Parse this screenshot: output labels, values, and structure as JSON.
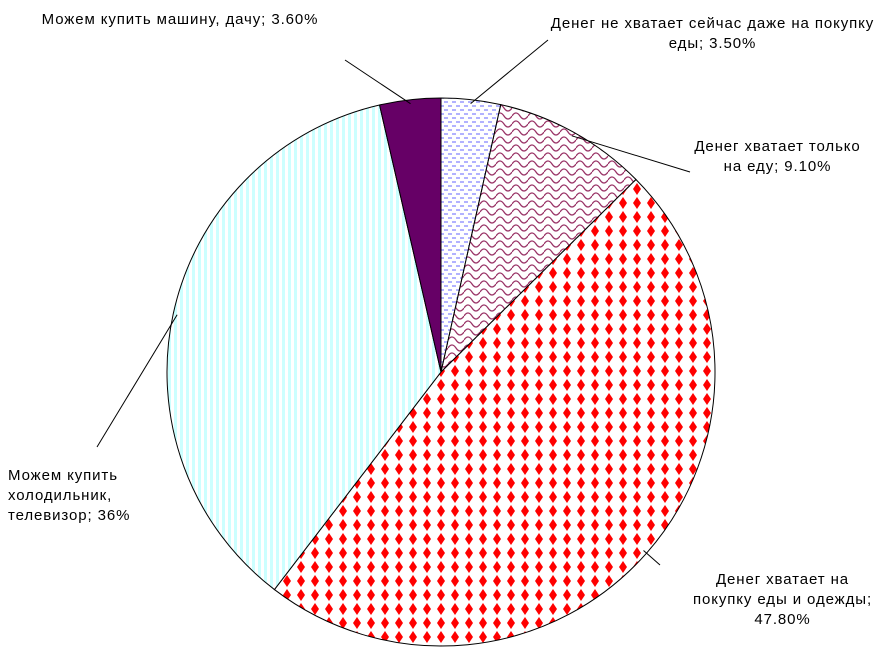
{
  "chart_data": {
    "type": "pie",
    "categories": [
      "Денег не хватает сейчас даже на покупку еды",
      "Денег хватает только на еду",
      "Денег хватает на покупку еды и одежды",
      "Можем купить холодильник, телевизор",
      "Можем купить машину, дачу"
    ],
    "values": [
      3.5,
      9.1,
      47.8,
      36,
      3.6
    ],
    "value_labels": [
      "3.50%",
      "9.10%",
      "47.80%",
      "36%",
      "3.60%"
    ],
    "label_separator": ";",
    "colors": [
      "#9999ff",
      "#993366",
      "#ff0000",
      "#ccffff",
      "#660066"
    ]
  }
}
